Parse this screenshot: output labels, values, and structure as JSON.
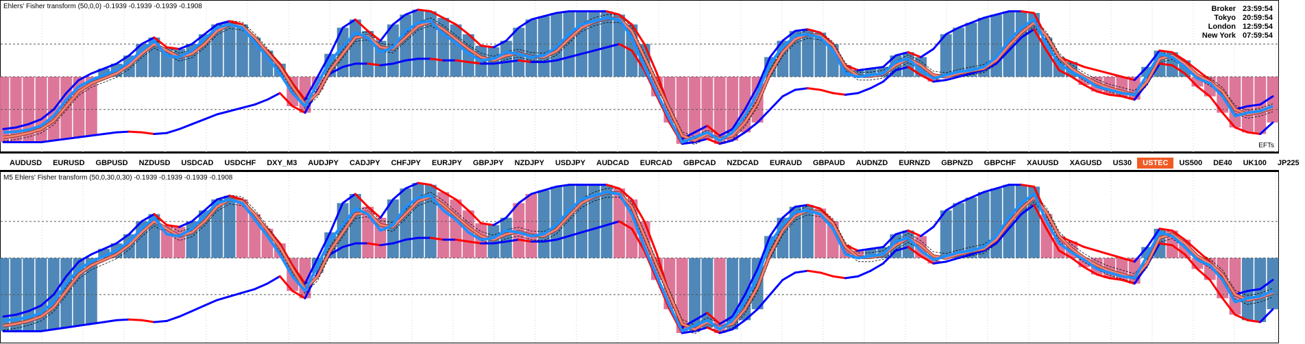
{
  "panes": {
    "top": {
      "title": "Ehlers' Fisher transform (50,0,0) -0.1939 -0.1939 -0.1939 -0.1908",
      "corner_label": "EFTs"
    },
    "bottom": {
      "title": "M5 Ehlers' Fisher transform (50,0,30,0,30) -0.1939 -0.1939 -0.1939 -0.1908"
    }
  },
  "clock": [
    {
      "city": "Broker",
      "time": "23:59:54"
    },
    {
      "city": "Tokyo",
      "time": "20:59:54"
    },
    {
      "city": "London",
      "time": "12:59:54"
    },
    {
      "city": "New York",
      "time": "07:59:54"
    }
  ],
  "symbols": [
    "AUDUSD",
    "EURUSD",
    "GBPUSD",
    "NZDUSD",
    "USDCAD",
    "USDCHF",
    "DXY_M3",
    "AUDJPY",
    "CADJPY",
    "CHFJPY",
    "EURJPY",
    "GBPJPY",
    "NZDJPY",
    "USDJPY",
    "AUDCAD",
    "EURCAD",
    "GBPCAD",
    "NZDCAD",
    "EURAUD",
    "GBPAUD",
    "AUDNZD",
    "EURNZD",
    "GBPNZD",
    "GBPCHF",
    "XAUUSD",
    "XAGUSD",
    "US30",
    "USTEC",
    "US500",
    "DE40",
    "UK100",
    "JP225"
  ],
  "active_symbol": "USTEC",
  "colors": {
    "bar_up": "#4682b4",
    "bar_down": "#db7093",
    "envelope_up": "#0000ff",
    "envelope_down": "#ff0000",
    "fisher": "#1e90ff",
    "trigger": "#fa8072",
    "band": "#000000"
  },
  "chart_data": {
    "type": "line",
    "ylim": [
      -2.2,
      2.2
    ],
    "levels": [
      1.0,
      0.0,
      -1.0
    ],
    "fisher": [
      -1.7,
      -1.68,
      -1.62,
      -1.5,
      -1.2,
      -0.7,
      -0.3,
      -0.1,
      0.05,
      0.2,
      0.45,
      0.8,
      1.1,
      0.65,
      0.6,
      0.8,
      1.15,
      1.5,
      1.6,
      1.5,
      1.05,
      0.6,
      0.1,
      -0.5,
      -0.9,
      -0.2,
      0.5,
      0.9,
      1.35,
      1.2,
      0.75,
      0.9,
      1.4,
      1.65,
      1.7,
      1.3,
      1.05,
      0.7,
      0.5,
      0.55,
      0.75,
      0.7,
      0.6,
      0.65,
      0.9,
      1.3,
      1.6,
      1.7,
      1.8,
      1.75,
      1.2,
      0.3,
      -0.5,
      -1.3,
      -2.0,
      -1.85,
      -1.7,
      -1.95,
      -1.7,
      -1.2,
      -0.5,
      0.4,
      0.9,
      1.25,
      1.3,
      1.2,
      0.8,
      0.1,
      0.0,
      0.05,
      0.1,
      0.45,
      0.55,
      0.2,
      -0.05,
      0.05,
      0.15,
      0.2,
      0.3,
      0.6,
      1.1,
      1.5,
      1.75,
      1.0,
      0.4,
      0.15,
      -0.05,
      -0.3,
      -0.4,
      -0.5,
      -0.55,
      0.05,
      0.7,
      0.6,
      0.3,
      -0.05,
      -0.2,
      -0.6,
      -1.2,
      -1.1,
      -1.05,
      -0.9
    ],
    "trigger": [
      -1.85,
      -1.8,
      -1.72,
      -1.6,
      -1.35,
      -0.9,
      -0.45,
      -0.2,
      -0.05,
      0.1,
      0.35,
      0.7,
      1.0,
      0.8,
      0.6,
      0.7,
      1.0,
      1.4,
      1.6,
      1.55,
      1.2,
      0.75,
      0.3,
      -0.3,
      -0.85,
      -0.5,
      0.2,
      0.7,
      1.2,
      1.25,
      0.9,
      0.85,
      1.2,
      1.55,
      1.68,
      1.45,
      1.15,
      0.85,
      0.6,
      0.5,
      0.65,
      0.72,
      0.62,
      0.6,
      0.78,
      1.15,
      1.5,
      1.68,
      1.78,
      1.78,
      1.4,
      0.6,
      -0.2,
      -1.0,
      -1.8,
      -1.95,
      -1.75,
      -1.9,
      -1.8,
      -1.4,
      -0.8,
      0.1,
      0.75,
      1.15,
      1.3,
      1.25,
      0.95,
      0.3,
      0.02,
      0.02,
      0.08,
      0.35,
      0.55,
      0.35,
      0.05,
      0.0,
      0.1,
      0.18,
      0.25,
      0.5,
      0.95,
      1.35,
      1.65,
      1.25,
      0.6,
      0.25,
      0.0,
      -0.2,
      -0.35,
      -0.45,
      -0.55,
      -0.15,
      0.55,
      0.65,
      0.4,
      0.05,
      -0.15,
      -0.45,
      -1.0,
      -1.15,
      -1.08,
      -0.95
    ],
    "upper_envelope": [
      -1.6,
      -1.55,
      -1.45,
      -1.3,
      -1.0,
      -0.5,
      -0.1,
      0.1,
      0.25,
      0.4,
      0.65,
      1.0,
      1.2,
      0.9,
      0.85,
      1.0,
      1.3,
      1.6,
      1.7,
      1.6,
      1.2,
      0.8,
      0.4,
      -0.2,
      -0.7,
      0.0,
      0.7,
      1.5,
      1.75,
      1.4,
      1.1,
      1.6,
      1.9,
      2.05,
      2.0,
      1.8,
      1.6,
      1.3,
      0.95,
      0.9,
      1.1,
      1.5,
      1.75,
      1.85,
      1.95,
      2.0,
      2.0,
      2.0,
      2.0,
      1.9,
      1.6,
      1.0,
      0.1,
      -1.0,
      -1.9,
      -1.7,
      -1.5,
      -1.8,
      -1.6,
      -1.0,
      -0.3,
      0.6,
      1.1,
      1.4,
      1.45,
      1.35,
      1.0,
      0.35,
      0.2,
      0.25,
      0.3,
      0.65,
      0.75,
      0.6,
      0.85,
      1.3,
      1.5,
      1.65,
      1.8,
      1.9,
      2.0,
      2.0,
      1.95,
      1.2,
      0.6,
      0.45,
      0.3,
      0.2,
      0.1,
      0.0,
      -0.1,
      0.3,
      0.8,
      0.75,
      0.5,
      0.2,
      -0.1,
      -0.5,
      -1.0,
      -0.9,
      -0.85,
      -0.6
    ],
    "lower_envelope": [
      -2.0,
      -2.0,
      -2.0,
      -2.0,
      -1.95,
      -1.9,
      -1.85,
      -1.8,
      -1.75,
      -1.7,
      -1.68,
      -1.7,
      -1.75,
      -1.72,
      -1.6,
      -1.45,
      -1.3,
      -1.15,
      -1.05,
      -0.95,
      -0.85,
      -0.7,
      -0.5,
      -0.9,
      -1.1,
      -0.4,
      0.1,
      0.3,
      0.4,
      0.4,
      0.35,
      0.4,
      0.5,
      0.55,
      0.55,
      0.5,
      0.5,
      0.45,
      0.4,
      0.4,
      0.45,
      0.5,
      0.45,
      0.45,
      0.5,
      0.6,
      0.7,
      0.8,
      0.9,
      1.0,
      0.8,
      0.2,
      -0.6,
      -1.4,
      -2.05,
      -2.0,
      -1.9,
      -2.05,
      -1.95,
      -1.7,
      -1.4,
      -1.0,
      -0.6,
      -0.4,
      -0.35,
      -0.4,
      -0.5,
      -0.55,
      -0.5,
      -0.35,
      -0.15,
      0.2,
      0.3,
      0.05,
      -0.15,
      -0.1,
      0.0,
      0.1,
      0.2,
      0.4,
      0.8,
      1.2,
      1.45,
      0.8,
      0.2,
      0.0,
      -0.25,
      -0.45,
      -0.55,
      -0.6,
      -0.7,
      -0.2,
      0.4,
      0.35,
      0.1,
      -0.3,
      -0.6,
      -1.1,
      -1.55,
      -1.7,
      -1.75,
      -1.4
    ]
  }
}
